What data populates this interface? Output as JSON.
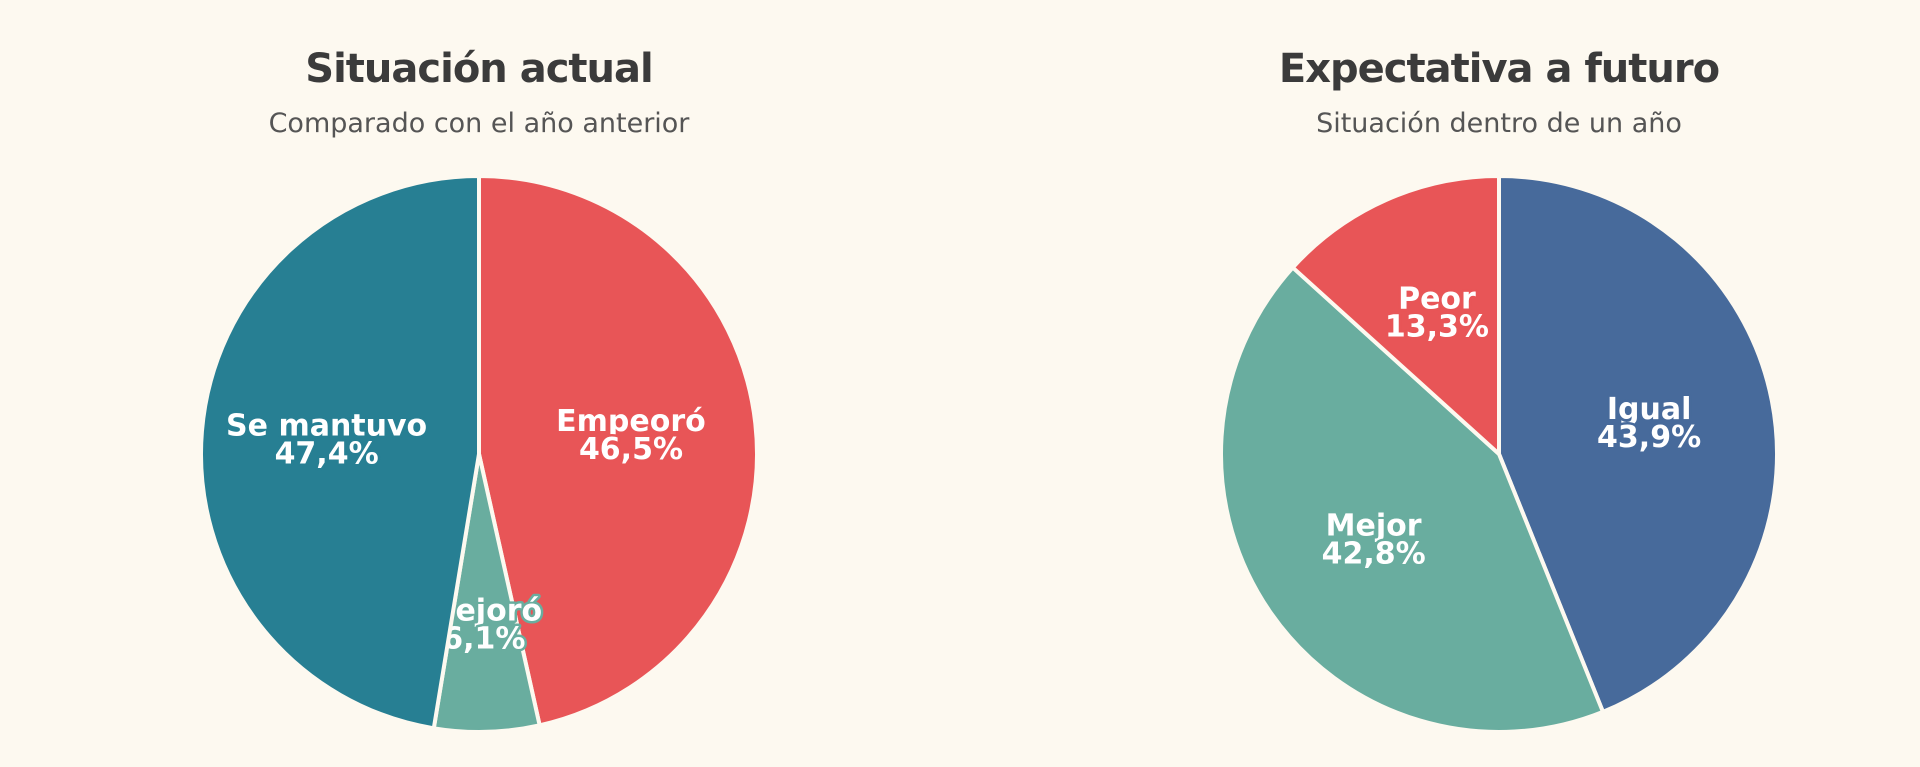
{
  "chart_data": [
    {
      "type": "pie",
      "title": "Situación actual",
      "subtitle": "Comparado con el año anterior",
      "categories": [
        "Empeoró",
        "Mejoró",
        "Se mantuvo"
      ],
      "values": [
        46.5,
        6.1,
        47.4
      ],
      "value_labels": [
        "46,5%",
        "6,1%",
        "47,4%"
      ],
      "colors": [
        "#e85557",
        "#69ad9f",
        "#277f93"
      ]
    },
    {
      "type": "pie",
      "title": "Expectativa a futuro",
      "subtitle": "Situación dentro de un año",
      "categories": [
        "Igual",
        "Mejor",
        "Peor"
      ],
      "values": [
        43.9,
        42.8,
        13.3
      ],
      "value_labels": [
        "43,9%",
        "42,8%",
        "13,3%"
      ],
      "colors": [
        "#476a9b",
        "#69ad9f",
        "#e85557"
      ]
    }
  ]
}
